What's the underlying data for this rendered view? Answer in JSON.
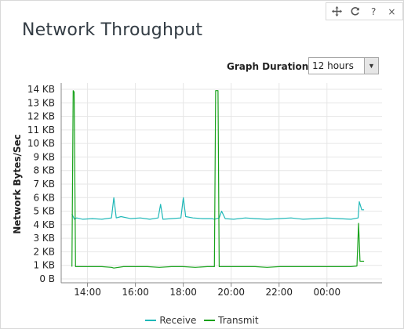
{
  "widget": {
    "title": "Network Throughput",
    "toolbar": {
      "move_icon": "move-arrows-icon",
      "refresh_icon": "refresh-icon",
      "help_label": "?",
      "close_label": "×"
    },
    "duration": {
      "label": "Graph Duration:",
      "selected": "12 hours"
    }
  },
  "colors": {
    "receive": "#1fb8b8",
    "transmit": "#17a21a",
    "grid": "#e6e6e6",
    "axis": "#888888"
  },
  "chart_data": {
    "type": "line",
    "title": "",
    "xlabel": "",
    "ylabel": "Network Bytes/Sec",
    "ylim": [
      0,
      14
    ],
    "yticks": [
      "0 B",
      "1 KB",
      "2 KB",
      "3 KB",
      "4 KB",
      "5 KB",
      "6 KB",
      "7 KB",
      "8 KB",
      "9 KB",
      "10 KB",
      "11 KB",
      "12 KB",
      "13 KB",
      "14 KB"
    ],
    "xticks": [
      {
        "value": 14,
        "label": "14:00"
      },
      {
        "value": 16,
        "label": "16:00"
      },
      {
        "value": 18,
        "label": "18:00"
      },
      {
        "value": 20,
        "label": "20:00"
      },
      {
        "value": 22,
        "label": "22:00"
      },
      {
        "value": 24,
        "label": "00:00"
      }
    ],
    "xlim": [
      12.9,
      26.3
    ],
    "legend_position": "bottom",
    "series": [
      {
        "name": "Receive",
        "x": [
          13.35,
          13.45,
          13.55,
          13.8,
          14.2,
          14.6,
          15.0,
          15.1,
          15.2,
          15.4,
          15.8,
          16.2,
          16.6,
          16.95,
          17.05,
          17.15,
          17.5,
          17.9,
          18.0,
          18.1,
          18.4,
          18.8,
          19.2,
          19.3,
          19.5,
          19.6,
          19.75,
          20.1,
          20.6,
          21.0,
          21.5,
          22.0,
          22.5,
          23.0,
          23.5,
          24.0,
          24.5,
          25.0,
          25.3,
          25.35,
          25.45,
          25.55
        ],
        "values": [
          4.8,
          4.4,
          4.5,
          4.4,
          4.45,
          4.4,
          4.5,
          6.0,
          4.5,
          4.6,
          4.45,
          4.5,
          4.4,
          4.5,
          5.5,
          4.4,
          4.45,
          4.5,
          6.0,
          4.6,
          4.5,
          4.45,
          4.45,
          4.4,
          4.5,
          5.0,
          4.45,
          4.4,
          4.5,
          4.45,
          4.4,
          4.45,
          4.5,
          4.4,
          4.45,
          4.5,
          4.45,
          4.4,
          4.5,
          5.7,
          5.1,
          5.1
        ]
      },
      {
        "name": "Transmit",
        "x": [
          13.35,
          13.4,
          13.44,
          13.5,
          13.6,
          14.0,
          14.6,
          15.0,
          15.1,
          15.5,
          16.0,
          16.5,
          17.0,
          17.5,
          18.0,
          18.5,
          19.0,
          19.3,
          19.35,
          19.45,
          19.5,
          19.6,
          20.0,
          20.5,
          21.0,
          21.5,
          22.0,
          22.5,
          23.0,
          23.5,
          24.0,
          24.5,
          25.0,
          25.25,
          25.32,
          25.38,
          25.45,
          25.55
        ],
        "values": [
          0.9,
          13.9,
          13.8,
          0.9,
          0.9,
          0.9,
          0.9,
          0.85,
          0.8,
          0.9,
          0.9,
          0.9,
          0.85,
          0.9,
          0.9,
          0.85,
          0.9,
          0.9,
          13.9,
          13.9,
          0.9,
          0.9,
          0.9,
          0.9,
          0.9,
          0.85,
          0.9,
          0.9,
          0.9,
          0.9,
          0.9,
          0.9,
          0.9,
          0.95,
          4.1,
          1.3,
          1.3,
          1.3
        ]
      }
    ]
  }
}
